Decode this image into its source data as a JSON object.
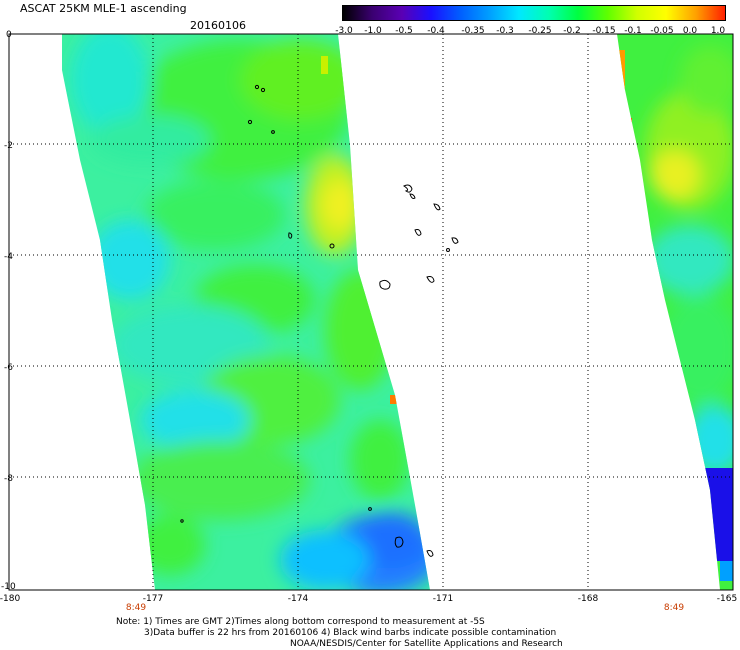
{
  "header": {
    "title": "ASCAT 25KM MLE-1 ascending",
    "date": "20160106"
  },
  "colorbar": {
    "labels": [
      "-3.0",
      "-1.0",
      "-0.5",
      "-0.4",
      "-0.35",
      "-0.3",
      "-0.25",
      "-0.2",
      "-0.15",
      "-0.1",
      "-0.05",
      "0.0",
      "1.0"
    ],
    "colors": [
      "#000000",
      "#5a00b4",
      "#2200ff",
      "#0060ff",
      "#00a0ff",
      "#00e0ff",
      "#00ffb0",
      "#00ff40",
      "#40ff00",
      "#c0ff00",
      "#ffff00",
      "#ffa000",
      "#ff2000"
    ]
  },
  "axes": {
    "y_ticks": [
      "0",
      "-2",
      "-4",
      "-6",
      "-8",
      "-10"
    ],
    "x_ticks": [
      "-180",
      "-177",
      "-174",
      "-171",
      "-168",
      "-165"
    ],
    "pass_times": [
      "8:49",
      "8:49"
    ]
  },
  "map_data": {
    "lon_range": [
      -180,
      -165
    ],
    "lat_range": [
      -10,
      0
    ],
    "grid": true,
    "swaths": [
      {
        "name": "western swath",
        "time": "8:49"
      },
      {
        "name": "eastern swath",
        "time": "8:49"
      }
    ]
  },
  "footer": {
    "note_line1": "Note: 1) Times are GMT 2)Times along bottom correspond to measurement at -5S",
    "note_line2": "3)Data buffer is 22 hrs from 20160106 4) Black wind barbs indicate possible contamination",
    "credit": "NOAA/NESDIS/Center for Satellite Applications and Research"
  }
}
